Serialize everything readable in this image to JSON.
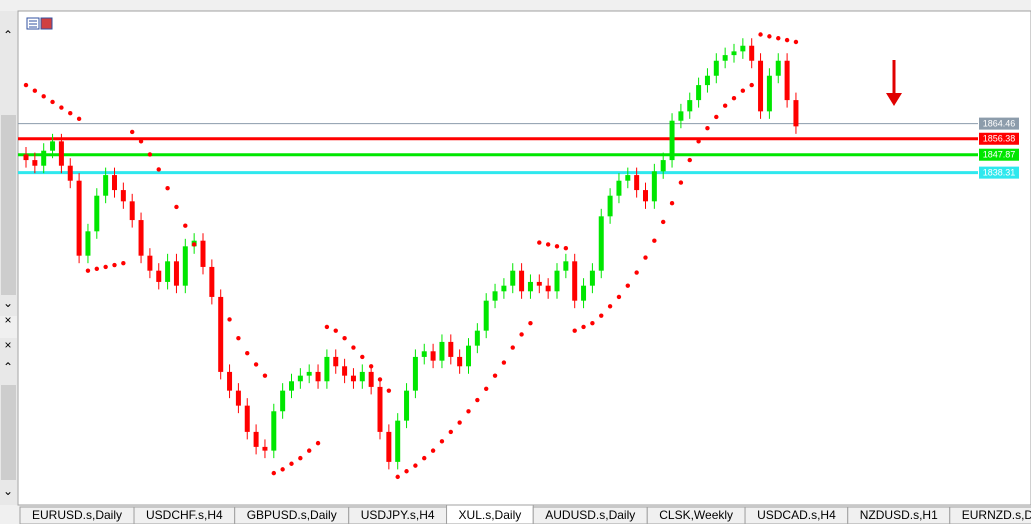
{
  "chart": {
    "ylim": [
      1669,
      1924
    ],
    "up_color": "#00e600",
    "down_color": "#ff0000",
    "sar_color": "#ff0000",
    "levels": [
      {
        "price": 1864.46,
        "color": "#8c9cab"
      },
      {
        "price": 1856.38,
        "color": "#ff0000"
      },
      {
        "price": 1847.87,
        "color": "#00e600"
      },
      {
        "price": 1838.31,
        "color": "#2ee8ee"
      }
    ],
    "candles": {
      "open": [
        1848,
        1845,
        1842,
        1850,
        1855,
        1842,
        1834,
        1794,
        1807,
        1826,
        1837,
        1829,
        1823,
        1813,
        1794,
        1786,
        1780,
        1791,
        1778,
        1799,
        1802,
        1788,
        1772,
        1732,
        1722,
        1714,
        1700,
        1692,
        1690,
        1711,
        1722,
        1727,
        1730,
        1732,
        1727,
        1740,
        1735,
        1730,
        1727,
        1732,
        1724,
        1700,
        1684,
        1706,
        1722,
        1740,
        1743,
        1738,
        1748,
        1740,
        1735,
        1746,
        1754,
        1770,
        1775,
        1778,
        1786,
        1775,
        1780,
        1778,
        1775,
        1786,
        1791,
        1770,
        1778,
        1786,
        1815,
        1826,
        1834,
        1837,
        1829,
        1823,
        1839,
        1845,
        1866,
        1871,
        1877,
        1885,
        1890,
        1898,
        1901,
        1903,
        1906,
        1898,
        1871,
        1890,
        1898,
        1877
      ],
      "high": [
        1852,
        1849,
        1854,
        1859,
        1859,
        1846,
        1838,
        1811,
        1830,
        1841,
        1841,
        1833,
        1827,
        1817,
        1798,
        1790,
        1795,
        1795,
        1803,
        1806,
        1806,
        1792,
        1776,
        1736,
        1726,
        1718,
        1704,
        1696,
        1715,
        1726,
        1731,
        1734,
        1736,
        1736,
        1744,
        1744,
        1739,
        1734,
        1736,
        1736,
        1728,
        1704,
        1710,
        1726,
        1744,
        1747,
        1747,
        1752,
        1752,
        1744,
        1750,
        1758,
        1774,
        1779,
        1782,
        1790,
        1790,
        1784,
        1784,
        1782,
        1790,
        1795,
        1795,
        1782,
        1790,
        1819,
        1830,
        1838,
        1841,
        1841,
        1833,
        1843,
        1849,
        1870,
        1875,
        1881,
        1889,
        1894,
        1902,
        1905,
        1907,
        1910,
        1910,
        1902,
        1894,
        1902,
        1902,
        1881
      ],
      "low": [
        1841,
        1838,
        1838,
        1846,
        1838,
        1830,
        1790,
        1790,
        1803,
        1822,
        1825,
        1819,
        1809,
        1790,
        1782,
        1776,
        1776,
        1774,
        1774,
        1795,
        1784,
        1768,
        1728,
        1718,
        1710,
        1696,
        1688,
        1686,
        1686,
        1707,
        1718,
        1723,
        1726,
        1723,
        1723,
        1731,
        1726,
        1723,
        1723,
        1720,
        1696,
        1680,
        1680,
        1702,
        1718,
        1736,
        1734,
        1734,
        1736,
        1731,
        1731,
        1742,
        1750,
        1766,
        1771,
        1774,
        1771,
        1771,
        1774,
        1771,
        1771,
        1782,
        1766,
        1766,
        1774,
        1782,
        1811,
        1822,
        1830,
        1825,
        1819,
        1819,
        1835,
        1841,
        1862,
        1867,
        1873,
        1881,
        1886,
        1894,
        1897,
        1899,
        1894,
        1867,
        1867,
        1886,
        1873,
        1859
      ],
      "close": [
        1845,
        1842,
        1850,
        1855,
        1842,
        1834,
        1794,
        1807,
        1826,
        1837,
        1829,
        1823,
        1813,
        1794,
        1786,
        1780,
        1791,
        1778,
        1799,
        1802,
        1788,
        1772,
        1732,
        1722,
        1714,
        1700,
        1692,
        1690,
        1711,
        1722,
        1727,
        1730,
        1732,
        1727,
        1740,
        1735,
        1730,
        1727,
        1732,
        1724,
        1700,
        1684,
        1706,
        1722,
        1740,
        1743,
        1738,
        1748,
        1740,
        1735,
        1746,
        1754,
        1770,
        1775,
        1778,
        1786,
        1775,
        1780,
        1778,
        1775,
        1786,
        1791,
        1770,
        1778,
        1786,
        1815,
        1826,
        1834,
        1837,
        1829,
        1823,
        1839,
        1845,
        1866,
        1871,
        1877,
        1885,
        1890,
        1898,
        1901,
        1903,
        1906,
        1898,
        1871,
        1890,
        1898,
        1877,
        1863
      ]
    },
    "sar": [
      1885,
      1882,
      1879,
      1876,
      1873,
      1870,
      1867,
      1786,
      1787,
      1788,
      1789,
      1790,
      1860,
      1855,
      1848,
      1840,
      1830,
      1820,
      1810,
      1800,
      1790,
      1780,
      1770,
      1760,
      1750,
      1742,
      1736,
      1730,
      1678,
      1680,
      1683,
      1686,
      1690,
      1694,
      1756,
      1754,
      1750,
      1745,
      1740,
      1735,
      1728,
      1722,
      1676,
      1679,
      1682,
      1686,
      1690,
      1695,
      1700,
      1705,
      1711,
      1717,
      1723,
      1730,
      1737,
      1745,
      1752,
      1758,
      1801,
      1800,
      1799,
      1798,
      1754,
      1756,
      1758,
      1762,
      1767,
      1772,
      1778,
      1785,
      1793,
      1802,
      1812,
      1822,
      1833,
      1845,
      1855,
      1862,
      1868,
      1874,
      1878,
      1882,
      1885,
      1912,
      1911,
      1910,
      1909,
      1908
    ]
  },
  "tabs": [
    "EURUSD.s,Daily",
    "USDCHF.s,H4",
    "GBPUSD.s,Daily",
    "USDJPY.s,H4",
    "XUL.s,Daily",
    "AUDUSD.s,Daily",
    "CLSK,Weekly",
    "USDCAD.s,H4",
    "NZDUSD.s,H1",
    "EURNZD.s,Daily"
  ],
  "active_tab": 4
}
